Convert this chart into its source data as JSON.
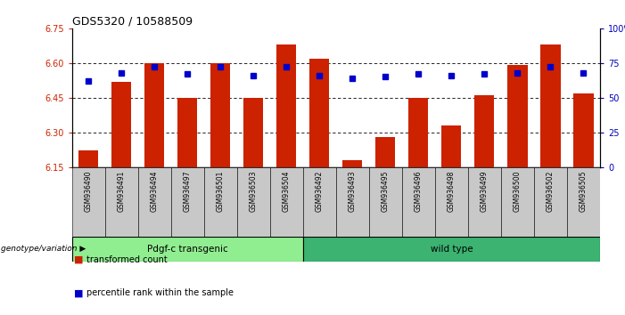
{
  "title": "GDS5320 / 10588509",
  "samples": [
    "GSM936490",
    "GSM936491",
    "GSM936494",
    "GSM936497",
    "GSM936501",
    "GSM936503",
    "GSM936504",
    "GSM936492",
    "GSM936493",
    "GSM936495",
    "GSM936496",
    "GSM936498",
    "GSM936499",
    "GSM936500",
    "GSM936502",
    "GSM936505"
  ],
  "transformed_counts": [
    6.22,
    6.52,
    6.6,
    6.45,
    6.6,
    6.45,
    6.68,
    6.62,
    6.18,
    6.28,
    6.45,
    6.33,
    6.46,
    6.59,
    6.68,
    6.47
  ],
  "percentile_ranks": [
    62,
    68,
    72,
    67,
    72,
    66,
    72,
    66,
    64,
    65,
    67,
    66,
    67,
    68,
    72,
    68
  ],
  "ylim_left": [
    6.15,
    6.75
  ],
  "ylim_right": [
    0,
    100
  ],
  "ybase": 6.15,
  "groups": [
    {
      "label": "Pdgf-c transgenic",
      "start": 0,
      "end": 7,
      "color": "#90ee90"
    },
    {
      "label": "wild type",
      "start": 7,
      "end": 16,
      "color": "#3cb371"
    }
  ],
  "bar_color": "#cc2200",
  "dot_color": "#0000cc",
  "tick_label_color": "#cc2200",
  "right_tick_color": "#0000bb",
  "sample_bg": "#c8c8c8",
  "legend_dot_label": "percentile rank within the sample",
  "legend_bar_label": "transformed count"
}
